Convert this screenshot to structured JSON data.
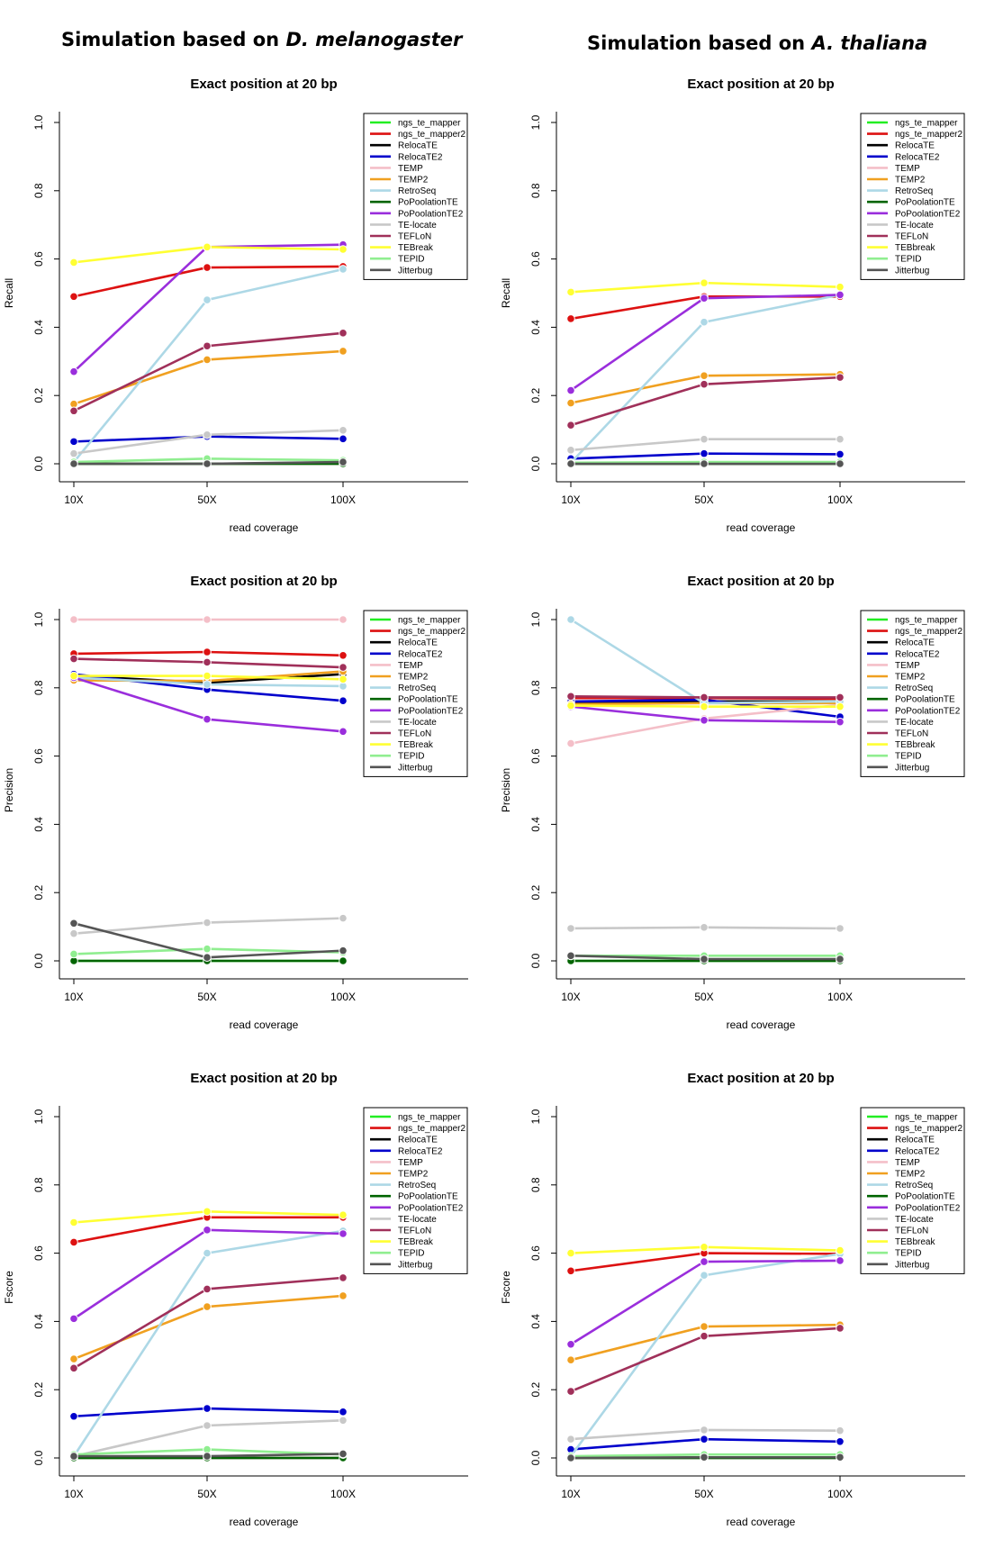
{
  "columns": [
    {
      "prefix": "Simulation based on ",
      "species": "D. melanogaster"
    },
    {
      "prefix": "Simulation based on ",
      "species": "A. thaliana"
    }
  ],
  "legend_labels": [
    "ngs_te_mapper",
    "ngs_te_mapper2",
    "RelocaTE",
    "RelocaTE2",
    "TEMP",
    "TEMP2",
    "RetroSeq",
    "PoPoolationTE",
    "PoPoolationTE2",
    "TE-locate",
    "TEFLoN",
    "TEBreak",
    "TEPID",
    "Jitterbug"
  ],
  "legend_labels_alt": [
    "ngs_te_mapper",
    "ngs_te_mapper2",
    "RelocaTE",
    "RelocaTE2",
    "TEMP",
    "TEMP2",
    "RetroSeq",
    "PoPoolationTE",
    "PoPoolationTE2",
    "TE-locate",
    "TEFLoN",
    "TEBbreak",
    "TEPID",
    "Jitterbug"
  ],
  "colors": [
    "#22ee22",
    "#dd1111",
    "#000000",
    "#0000cc",
    "#f4bfc8",
    "#f0a020",
    "#add8e6",
    "#006400",
    "#9a2edc",
    "#c8c8c8",
    "#a0305a",
    "#ffff33",
    "#90ee90",
    "#555555"
  ],
  "chart_data": [
    {
      "type": "line",
      "title": "Exact position at 20 bp",
      "xlabel": "read coverage",
      "ylabel": "Recall",
      "ylim": [
        0,
        1
      ],
      "yticks": [
        "0.0",
        "0.2",
        "0.4",
        "0.6",
        "0.8",
        "1.0"
      ],
      "categories": [
        "10X",
        "50X",
        "100X"
      ],
      "legend_position": "top-right",
      "legend": "legend_labels",
      "series": [
        {
          "name": "ngs_te_mapper",
          "values": [
            0.0,
            0.0,
            0.0
          ]
        },
        {
          "name": "ngs_te_mapper2",
          "values": [
            0.49,
            0.575,
            0.578
          ]
        },
        {
          "name": "RelocaTE",
          "values": [
            0.0,
            0.0,
            0.0
          ]
        },
        {
          "name": "RelocaTE2",
          "values": [
            0.065,
            0.08,
            0.073
          ]
        },
        {
          "name": "TEMP",
          "values": [
            0.0,
            0.0,
            0.0
          ]
        },
        {
          "name": "TEMP2",
          "values": [
            0.175,
            0.305,
            0.33
          ]
        },
        {
          "name": "RetroSeq",
          "values": [
            0.005,
            0.48,
            0.57
          ]
        },
        {
          "name": "PoPoolationTE",
          "values": [
            0.0,
            0.0,
            0.0
          ]
        },
        {
          "name": "PoPoolationTE2",
          "values": [
            0.27,
            0.635,
            0.642
          ]
        },
        {
          "name": "TE-locate",
          "values": [
            0.03,
            0.085,
            0.098
          ]
        },
        {
          "name": "TEFLoN",
          "values": [
            0.155,
            0.345,
            0.383
          ]
        },
        {
          "name": "TEBreak",
          "values": [
            0.59,
            0.635,
            0.628
          ]
        },
        {
          "name": "TEPID",
          "values": [
            0.005,
            0.015,
            0.01
          ]
        },
        {
          "name": "Jitterbug",
          "values": [
            0.0,
            0.0,
            0.005
          ]
        }
      ]
    },
    {
      "type": "line",
      "title": "Exact position at 20 bp",
      "xlabel": "read coverage",
      "ylabel": "Recall",
      "ylim": [
        0,
        1
      ],
      "yticks": [
        "0.0",
        "0.2",
        "0.4",
        "0.6",
        "0.8",
        "1.0"
      ],
      "categories": [
        "10X",
        "50X",
        "100X"
      ],
      "legend_position": "top-right",
      "legend": "legend_labels_alt",
      "series": [
        {
          "name": "ngs_te_mapper",
          "values": [
            0.0,
            0.0,
            0.0
          ]
        },
        {
          "name": "ngs_te_mapper2",
          "values": [
            0.425,
            0.49,
            0.49
          ]
        },
        {
          "name": "RelocaTE",
          "values": [
            0.0,
            0.0,
            0.0
          ]
        },
        {
          "name": "RelocaTE2",
          "values": [
            0.015,
            0.03,
            0.028
          ]
        },
        {
          "name": "TEMP",
          "values": [
            0.0,
            0.0,
            0.0
          ]
        },
        {
          "name": "TEMP2",
          "values": [
            0.178,
            0.258,
            0.262
          ]
        },
        {
          "name": "RetroSeq",
          "values": [
            0.003,
            0.415,
            0.495
          ]
        },
        {
          "name": "PoPoolationTE",
          "values": [
            0.0,
            0.0,
            0.0
          ]
        },
        {
          "name": "PoPoolationTE2",
          "values": [
            0.215,
            0.485,
            0.495
          ]
        },
        {
          "name": "TE-locate",
          "values": [
            0.04,
            0.072,
            0.072
          ]
        },
        {
          "name": "TEFLoN",
          "values": [
            0.113,
            0.233,
            0.253
          ]
        },
        {
          "name": "TEBbreak",
          "values": [
            0.503,
            0.53,
            0.518
          ]
        },
        {
          "name": "TEPID",
          "values": [
            0.003,
            0.005,
            0.005
          ]
        },
        {
          "name": "Jitterbug",
          "values": [
            0.0,
            0.0,
            0.0
          ]
        }
      ]
    },
    {
      "type": "line",
      "title": "Exact position at 20 bp",
      "xlabel": "read coverage",
      "ylabel": "Precision",
      "ylim": [
        0,
        1
      ],
      "yticks": [
        "0.0",
        "0.2",
        "0.4",
        "0.6",
        "0.8",
        "1.0"
      ],
      "categories": [
        "10X",
        "50X",
        "100X"
      ],
      "legend_position": "top-right",
      "legend": "legend_labels",
      "series": [
        {
          "name": "ngs_te_mapper",
          "values": [
            0.0,
            0.0,
            0.0
          ]
        },
        {
          "name": "ngs_te_mapper2",
          "values": [
            0.9,
            0.905,
            0.895
          ]
        },
        {
          "name": "RelocaTE",
          "values": [
            0.835,
            0.815,
            0.84
          ]
        },
        {
          "name": "RelocaTE2",
          "values": [
            0.84,
            0.795,
            0.762
          ]
        },
        {
          "name": "TEMP",
          "values": [
            1.0,
            1.0,
            1.0
          ]
        },
        {
          "name": "TEMP2",
          "values": [
            0.822,
            0.82,
            0.848
          ]
        },
        {
          "name": "RetroSeq",
          "values": [
            0.83,
            0.81,
            0.805
          ]
        },
        {
          "name": "PoPoolationTE",
          "values": [
            0.0,
            0.0,
            0.0
          ]
        },
        {
          "name": "PoPoolationTE2",
          "values": [
            0.83,
            0.708,
            0.672
          ]
        },
        {
          "name": "TE-locate",
          "values": [
            0.08,
            0.112,
            0.125
          ]
        },
        {
          "name": "TEFLoN",
          "values": [
            0.885,
            0.875,
            0.86
          ]
        },
        {
          "name": "TEBreak",
          "values": [
            0.835,
            0.835,
            0.825
          ]
        },
        {
          "name": "TEPID",
          "values": [
            0.02,
            0.035,
            0.025
          ]
        },
        {
          "name": "Jitterbug",
          "values": [
            0.11,
            0.01,
            0.03
          ]
        }
      ]
    },
    {
      "type": "line",
      "title": "Exact position at 20 bp",
      "xlabel": "read coverage",
      "ylabel": "Precision",
      "ylim": [
        0,
        1
      ],
      "yticks": [
        "0.0",
        "0.2",
        "0.4",
        "0.6",
        "0.8",
        "1.0"
      ],
      "categories": [
        "10X",
        "50X",
        "100X"
      ],
      "legend_position": "top-right",
      "legend": "legend_labels_alt",
      "series": [
        {
          "name": "ngs_te_mapper",
          "values": [
            0.0,
            0.0,
            0.0
          ]
        },
        {
          "name": "ngs_te_mapper2",
          "values": [
            0.77,
            0.77,
            0.768
          ]
        },
        {
          "name": "RelocaTE",
          "values": [
            0.755,
            0.76,
            0.76
          ]
        },
        {
          "name": "RelocaTE2",
          "values": [
            0.76,
            0.765,
            0.715
          ]
        },
        {
          "name": "TEMP",
          "values": [
            0.637,
            0.71,
            0.75
          ]
        },
        {
          "name": "TEMP2",
          "values": [
            0.752,
            0.755,
            0.755
          ]
        },
        {
          "name": "RetroSeq",
          "values": [
            1.0,
            0.755,
            0.76
          ]
        },
        {
          "name": "PoPoolationTE",
          "values": [
            0.0,
            0.0,
            0.0
          ]
        },
        {
          "name": "PoPoolationTE2",
          "values": [
            0.745,
            0.705,
            0.7
          ]
        },
        {
          "name": "TE-locate",
          "values": [
            0.095,
            0.098,
            0.095
          ]
        },
        {
          "name": "TEFLoN",
          "values": [
            0.775,
            0.772,
            0.772
          ]
        },
        {
          "name": "TEBbreak",
          "values": [
            0.748,
            0.745,
            0.745
          ]
        },
        {
          "name": "TEPID",
          "values": [
            0.015,
            0.015,
            0.015
          ]
        },
        {
          "name": "Jitterbug",
          "values": [
            0.015,
            0.005,
            0.005
          ]
        }
      ]
    },
    {
      "type": "line",
      "title": "Exact position at 20 bp",
      "xlabel": "read coverage",
      "ylabel": "Fscore",
      "ylim": [
        0,
        1
      ],
      "yticks": [
        "0.0",
        "0.2",
        "0.4",
        "0.6",
        "0.8",
        "1.0"
      ],
      "categories": [
        "10X",
        "50X",
        "100X"
      ],
      "legend_position": "top-right",
      "legend": "legend_labels",
      "series": [
        {
          "name": "ngs_te_mapper",
          "values": [
            0.0,
            0.0,
            0.0
          ]
        },
        {
          "name": "ngs_te_mapper2",
          "values": [
            0.632,
            0.705,
            0.705
          ]
        },
        {
          "name": "RelocaTE",
          "values": [
            0.0,
            0.0,
            0.0
          ]
        },
        {
          "name": "RelocaTE2",
          "values": [
            0.122,
            0.145,
            0.135
          ]
        },
        {
          "name": "TEMP",
          "values": [
            0.0,
            0.0,
            0.0
          ]
        },
        {
          "name": "TEMP2",
          "values": [
            0.29,
            0.443,
            0.475
          ]
        },
        {
          "name": "RetroSeq",
          "values": [
            0.005,
            0.6,
            0.665
          ]
        },
        {
          "name": "PoPoolationTE",
          "values": [
            0.0,
            0.0,
            0.0
          ]
        },
        {
          "name": "PoPoolationTE2",
          "values": [
            0.408,
            0.668,
            0.657
          ]
        },
        {
          "name": "TE-locate",
          "values": [
            0.005,
            0.095,
            0.11
          ]
        },
        {
          "name": "TEFLoN",
          "values": [
            0.263,
            0.495,
            0.528
          ]
        },
        {
          "name": "TEBreak",
          "values": [
            0.69,
            0.722,
            0.712
          ]
        },
        {
          "name": "TEPID",
          "values": [
            0.01,
            0.025,
            0.01
          ]
        },
        {
          "name": "Jitterbug",
          "values": [
            0.005,
            0.005,
            0.012
          ]
        }
      ]
    },
    {
      "type": "line",
      "title": "Exact position at 20 bp",
      "xlabel": "read coverage",
      "ylabel": "Fscore",
      "ylim": [
        0,
        1
      ],
      "yticks": [
        "0.0",
        "0.2",
        "0.4",
        "0.6",
        "0.8",
        "1.0"
      ],
      "categories": [
        "10X",
        "50X",
        "100X"
      ],
      "legend_position": "top-right",
      "legend": "legend_labels_alt",
      "series": [
        {
          "name": "ngs_te_mapper",
          "values": [
            0.0,
            0.0,
            0.0
          ]
        },
        {
          "name": "ngs_te_mapper2",
          "values": [
            0.548,
            0.6,
            0.598
          ]
        },
        {
          "name": "RelocaTE",
          "values": [
            0.0,
            0.0,
            0.0
          ]
        },
        {
          "name": "RelocaTE2",
          "values": [
            0.025,
            0.055,
            0.048
          ]
        },
        {
          "name": "TEMP",
          "values": [
            0.0,
            0.0,
            0.0
          ]
        },
        {
          "name": "TEMP2",
          "values": [
            0.287,
            0.385,
            0.39
          ]
        },
        {
          "name": "RetroSeq",
          "values": [
            0.005,
            0.535,
            0.598
          ]
        },
        {
          "name": "PoPoolationTE",
          "values": [
            0.0,
            0.0,
            0.0
          ]
        },
        {
          "name": "PoPoolationTE2",
          "values": [
            0.333,
            0.575,
            0.578
          ]
        },
        {
          "name": "TE-locate",
          "values": [
            0.055,
            0.082,
            0.08
          ]
        },
        {
          "name": "TEFLoN",
          "values": [
            0.195,
            0.357,
            0.38
          ]
        },
        {
          "name": "TEBbreak",
          "values": [
            0.6,
            0.618,
            0.608
          ]
        },
        {
          "name": "TEPID",
          "values": [
            0.005,
            0.01,
            0.01
          ]
        },
        {
          "name": "Jitterbug",
          "values": [
            0.0,
            0.002,
            0.002
          ]
        }
      ]
    }
  ]
}
